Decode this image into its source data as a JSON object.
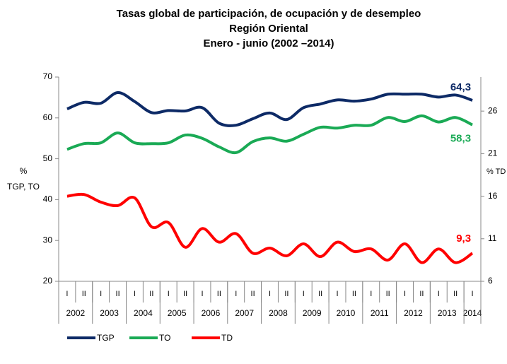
{
  "chart_data": {
    "type": "line",
    "title": [
      "Tasas global de participación, de ocupación y de desempleo",
      "Región Oriental",
      "Enero - junio (2002 –2014)"
    ],
    "ylabel": [
      "%",
      "TGP, TO"
    ],
    "y2label": "% TD",
    "categories": [
      "I",
      "II",
      "I",
      "II",
      "I",
      "II",
      "I",
      "II",
      "I",
      "II",
      "I",
      "II",
      "I",
      "II",
      "I",
      "II",
      "I",
      "II",
      "I",
      "II",
      "I",
      "II",
      "I",
      "II",
      "I"
    ],
    "years": [
      "2002",
      "2003",
      "2004",
      "2005",
      "2006",
      "2007",
      "2008",
      "2009",
      "2010",
      "2011",
      "2012",
      "2013",
      "2014"
    ],
    "ylim": [
      20,
      70
    ],
    "yticks": [
      20,
      30,
      40,
      50,
      60,
      70
    ],
    "y2lim": [
      6,
      30
    ],
    "y2ticks": [
      6,
      11,
      16,
      21,
      26
    ],
    "legend": "bottom",
    "series": [
      {
        "name": "TGP",
        "color": "#0d2a66",
        "values": [
          62.2,
          63.8,
          63.6,
          66.2,
          64,
          61.3,
          61.8,
          61.7,
          62.5,
          58.7,
          58.2,
          59.8,
          61.2,
          59.6,
          62.5,
          63.4,
          64.4,
          64.1,
          64.6,
          65.8,
          65.8,
          65.8,
          65.1,
          65.6,
          64.3
        ],
        "value_labels": [
          null,
          null,
          null,
          null,
          null,
          null,
          null,
          null,
          null,
          null,
          null,
          null,
          null,
          null,
          null,
          null,
          null,
          null,
          null,
          null,
          null,
          null,
          null,
          null,
          "64,3"
        ]
      },
      {
        "name": "TO",
        "color": "#1aaa55",
        "values": [
          52.3,
          53.7,
          53.9,
          56.3,
          53.9,
          53.7,
          53.9,
          55.8,
          55,
          52.9,
          51.5,
          54.2,
          55.1,
          54.3,
          56,
          57.7,
          57.5,
          58.2,
          58.2,
          60.1,
          59.1,
          60.5,
          59,
          60.1,
          58.3
        ],
        "value_labels": [
          null,
          null,
          null,
          null,
          null,
          null,
          null,
          null,
          null,
          null,
          null,
          null,
          null,
          null,
          null,
          null,
          null,
          null,
          null,
          null,
          null,
          null,
          null,
          null,
          "58,3"
        ]
      },
      {
        "name": "TD",
        "color": "#ff0000",
        "axis": "y2",
        "values": [
          16,
          16.2,
          15.3,
          14.9,
          15.8,
          12.4,
          12.9,
          10,
          12.2,
          10.6,
          11.6,
          9.3,
          9.9,
          9,
          10.4,
          8.9,
          10.6,
          9.5,
          9.8,
          8.5,
          10.4,
          8.2,
          9.8,
          8.2,
          9.3
        ],
        "value_labels": [
          null,
          null,
          null,
          null,
          null,
          null,
          null,
          null,
          null,
          null,
          null,
          null,
          null,
          null,
          null,
          null,
          null,
          null,
          null,
          null,
          null,
          null,
          null,
          null,
          "9,3"
        ]
      }
    ]
  }
}
